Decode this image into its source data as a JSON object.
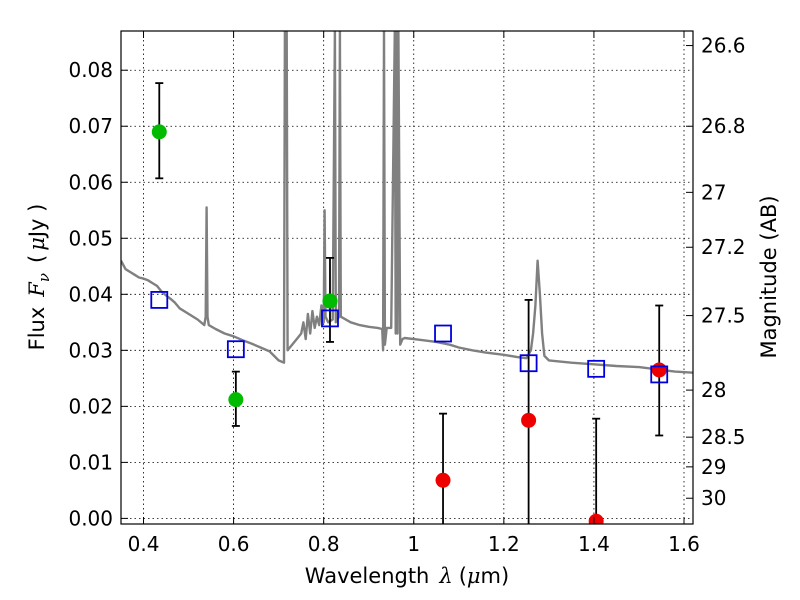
{
  "chart_data": {
    "type": "scatter",
    "title": "",
    "xlabel": {
      "text": "Wavelength",
      "symbol": "λ",
      "unit_open": "(",
      "unit_mu": "μ",
      "unit_rest": "m)"
    },
    "ylabel": {
      "text": "Flux",
      "symbol": "F",
      "subscript": "ν",
      "unit_open": "(",
      "unit_mu": "μ",
      "unit_rest": "Jy )"
    },
    "y2label": "Magnitude (AB)",
    "xlim": [
      0.35,
      1.62
    ],
    "ylim": [
      -0.001,
      0.087
    ],
    "grid": true,
    "x_ticks": [
      0.4,
      0.6,
      0.8,
      1.0,
      1.2,
      1.4,
      1.6
    ],
    "x_tick_labels": [
      "0.4",
      "0.6",
      "0.8",
      "1",
      "1.2",
      "1.4",
      "1.6"
    ],
    "y_ticks": [
      0.0,
      0.01,
      0.02,
      0.03,
      0.04,
      0.05,
      0.06,
      0.07,
      0.08
    ],
    "y_tick_labels": [
      "0.00",
      "0.01",
      "0.02",
      "0.03",
      "0.04",
      "0.05",
      "0.06",
      "0.07",
      "0.08"
    ],
    "y2_ticks": [
      {
        "flux": 0.0844,
        "label": "26.6"
      },
      {
        "flux": 0.07,
        "label": "26.8"
      },
      {
        "flux": 0.0582,
        "label": "27"
      },
      {
        "flux": 0.0484,
        "label": "27.2"
      },
      {
        "flux": 0.0362,
        "label": "27.5"
      },
      {
        "flux": 0.0229,
        "label": "28"
      },
      {
        "flux": 0.0145,
        "label": "28.5"
      },
      {
        "flux": 0.0092,
        "label": "29"
      },
      {
        "flux": 0.0036,
        "label": "30"
      }
    ],
    "model_spectrum": {
      "color": "#808080",
      "points": [
        [
          0.35,
          0.046
        ],
        [
          0.36,
          0.0445
        ],
        [
          0.37,
          0.044
        ],
        [
          0.38,
          0.0435
        ],
        [
          0.39,
          0.043
        ],
        [
          0.4,
          0.0428
        ],
        [
          0.41,
          0.0425
        ],
        [
          0.42,
          0.042
        ],
        [
          0.43,
          0.0415
        ],
        [
          0.44,
          0.0405
        ],
        [
          0.45,
          0.0398
        ],
        [
          0.46,
          0.0392
        ],
        [
          0.47,
          0.0385
        ],
        [
          0.48,
          0.0375
        ],
        [
          0.5,
          0.0365
        ],
        [
          0.52,
          0.0355
        ],
        [
          0.535,
          0.0345
        ],
        [
          0.538,
          0.036
        ],
        [
          0.54,
          0.0555
        ],
        [
          0.542,
          0.036
        ],
        [
          0.545,
          0.0345
        ],
        [
          0.56,
          0.0338
        ],
        [
          0.58,
          0.033
        ],
        [
          0.6,
          0.0325
        ],
        [
          0.62,
          0.0318
        ],
        [
          0.64,
          0.0312
        ],
        [
          0.66,
          0.0305
        ],
        [
          0.68,
          0.0298
        ],
        [
          0.7,
          0.0282
        ],
        [
          0.712,
          0.0278
        ],
        [
          0.714,
          0.087
        ],
        [
          0.718,
          0.087
        ],
        [
          0.72,
          0.03
        ],
        [
          0.73,
          0.031
        ],
        [
          0.74,
          0.032
        ],
        [
          0.75,
          0.033
        ],
        [
          0.755,
          0.035
        ],
        [
          0.76,
          0.032
        ],
        [
          0.765,
          0.0365
        ],
        [
          0.77,
          0.033
        ],
        [
          0.775,
          0.037
        ],
        [
          0.78,
          0.034
        ],
        [
          0.785,
          0.036
        ],
        [
          0.79,
          0.0345
        ],
        [
          0.795,
          0.038
        ],
        [
          0.8,
          0.035
        ],
        [
          0.802,
          0.055
        ],
        [
          0.804,
          0.036
        ],
        [
          0.81,
          0.035
        ],
        [
          0.82,
          0.0355
        ],
        [
          0.825,
          0.087
        ],
        [
          0.827,
          0.035
        ],
        [
          0.834,
          0.036
        ],
        [
          0.836,
          0.087
        ],
        [
          0.838,
          0.036
        ],
        [
          0.86,
          0.035
        ],
        [
          0.88,
          0.0345
        ],
        [
          0.9,
          0.0342
        ],
        [
          0.92,
          0.034
        ],
        [
          0.93,
          0.0338
        ],
        [
          0.932,
          0.03
        ],
        [
          0.934,
          0.087
        ],
        [
          0.936,
          0.031
        ],
        [
          0.94,
          0.034
        ],
        [
          0.95,
          0.034
        ],
        [
          0.958,
          0.087
        ],
        [
          0.96,
          0.033
        ],
        [
          0.962,
          0.087
        ],
        [
          0.964,
          0.033
        ],
        [
          0.966,
          0.087
        ],
        [
          0.97,
          0.031
        ],
        [
          0.975,
          0.032
        ],
        [
          0.98,
          0.0322
        ],
        [
          1.0,
          0.032
        ],
        [
          1.02,
          0.0318
        ],
        [
          1.05,
          0.0315
        ],
        [
          1.08,
          0.031
        ],
        [
          1.1,
          0.0305
        ],
        [
          1.13,
          0.03
        ],
        [
          1.16,
          0.0296
        ],
        [
          1.2,
          0.0292
        ],
        [
          1.23,
          0.0288
        ],
        [
          1.25,
          0.0286
        ],
        [
          1.26,
          0.03
        ],
        [
          1.265,
          0.033
        ],
        [
          1.27,
          0.038
        ],
        [
          1.275,
          0.046
        ],
        [
          1.28,
          0.04
        ],
        [
          1.285,
          0.033
        ],
        [
          1.29,
          0.029
        ],
        [
          1.3,
          0.0282
        ],
        [
          1.35,
          0.0278
        ],
        [
          1.4,
          0.0275
        ],
        [
          1.45,
          0.0272
        ],
        [
          1.5,
          0.027
        ],
        [
          1.55,
          0.0265
        ],
        [
          1.58,
          0.0262
        ],
        [
          1.62,
          0.026
        ]
      ]
    },
    "series": [
      {
        "marker": "circle",
        "color": "#00bb00",
        "points": [
          {
            "x": 0.435,
            "y": 0.069,
            "lo": 0.0607,
            "hi": 0.0777
          },
          {
            "x": 0.605,
            "y": 0.0212,
            "lo": 0.0165,
            "hi": 0.0262
          },
          {
            "x": 0.814,
            "y": 0.0388,
            "lo": 0.0315,
            "hi": 0.0465
          }
        ]
      },
      {
        "marker": "circle",
        "color": "#ee0000",
        "points": [
          {
            "x": 1.065,
            "y": 0.0068,
            "lo": -0.001,
            "hi": 0.0187
          },
          {
            "x": 1.255,
            "y": 0.0175,
            "lo": -0.001,
            "hi": 0.039
          },
          {
            "x": 1.405,
            "y": -0.0005,
            "lo": -0.001,
            "hi": 0.0178
          },
          {
            "x": 1.545,
            "y": 0.0265,
            "lo": 0.0148,
            "hi": 0.038
          }
        ]
      },
      {
        "marker": "open-square",
        "color": "#0000dd",
        "points": [
          {
            "x": 0.435,
            "y": 0.039
          },
          {
            "x": 0.605,
            "y": 0.0302
          },
          {
            "x": 0.814,
            "y": 0.0357
          },
          {
            "x": 1.065,
            "y": 0.033
          },
          {
            "x": 1.255,
            "y": 0.0277
          },
          {
            "x": 1.405,
            "y": 0.0267
          },
          {
            "x": 1.545,
            "y": 0.0257
          }
        ]
      }
    ]
  }
}
